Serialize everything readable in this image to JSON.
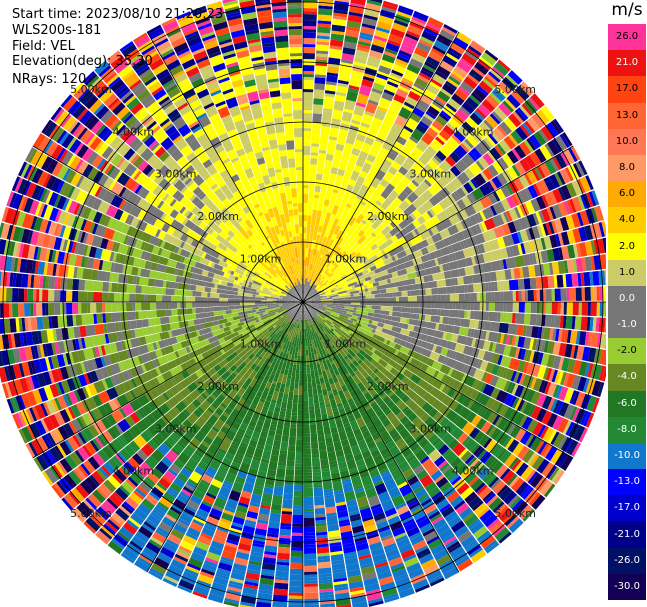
{
  "header": {
    "start_time": "Start time: 2023/08/10 21:20:23",
    "instrument": "WLS200s-181",
    "field": "Field: VEL",
    "elevation": "Elevation(deg): 35.30",
    "nrays": "NRays: 120"
  },
  "colorbar": {
    "unit": "m/s",
    "labels": [
      "26.0",
      "21.0",
      "17.0",
      "13.0",
      "10.0",
      "8.0",
      "6.0",
      "4.0",
      "2.0",
      "1.0",
      "0.0",
      "-1.0",
      "-2.0",
      "-4.0",
      "-6.0",
      "-8.0",
      "-10.0",
      "-13.0",
      "-17.0",
      "-21.0",
      "-26.0",
      "-30.0"
    ],
    "colors": [
      "#ff3399",
      "#ee1111",
      "#ff4411",
      "#ff6633",
      "#ff7755",
      "#ff9966",
      "#ffaa00",
      "#ffcc00",
      "#ffff00",
      "#cccc66",
      "#777777",
      "#777777",
      "#99cc33",
      "#668822",
      "#227722",
      "#228833",
      "#1177cc",
      "#0000ff",
      "#0000cc",
      "#000088",
      "#001166",
      "#110055"
    ]
  },
  "chart_data": {
    "type": "ppi",
    "title": "",
    "field": "VEL",
    "units": "m/s",
    "vmin": -30.0,
    "vmax": 30.0,
    "elevation_deg": 35.3,
    "n_rays": 120,
    "range_rings_km": [
      1.0,
      2.0,
      3.0,
      4.0,
      5.0
    ],
    "range_ring_labels": [
      "1.00km",
      "2.00km",
      "3.00km",
      "4.00km",
      "5.00km"
    ],
    "max_range_km": 5.2,
    "gate_spacing_km": 0.05,
    "sectors": [
      {
        "azimuth_deg": [
          300,
          60
        ],
        "description": "north",
        "near_range_ms": 6.0,
        "mid_range_ms": 2.0
      },
      {
        "azimuth_deg": [
          60,
          110
        ],
        "description": "east",
        "near_range_ms": 0.0,
        "mid_range_ms": 1.0
      },
      {
        "azimuth_deg": [
          110,
          250
        ],
        "description": "south",
        "near_range_ms": -5.0,
        "mid_range_ms": -3.0,
        "far_range_ms": -10.0
      },
      {
        "azimuth_deg": [
          250,
          300
        ],
        "description": "west",
        "near_range_ms": 0.0,
        "mid_range_ms": -1.5
      }
    ]
  }
}
